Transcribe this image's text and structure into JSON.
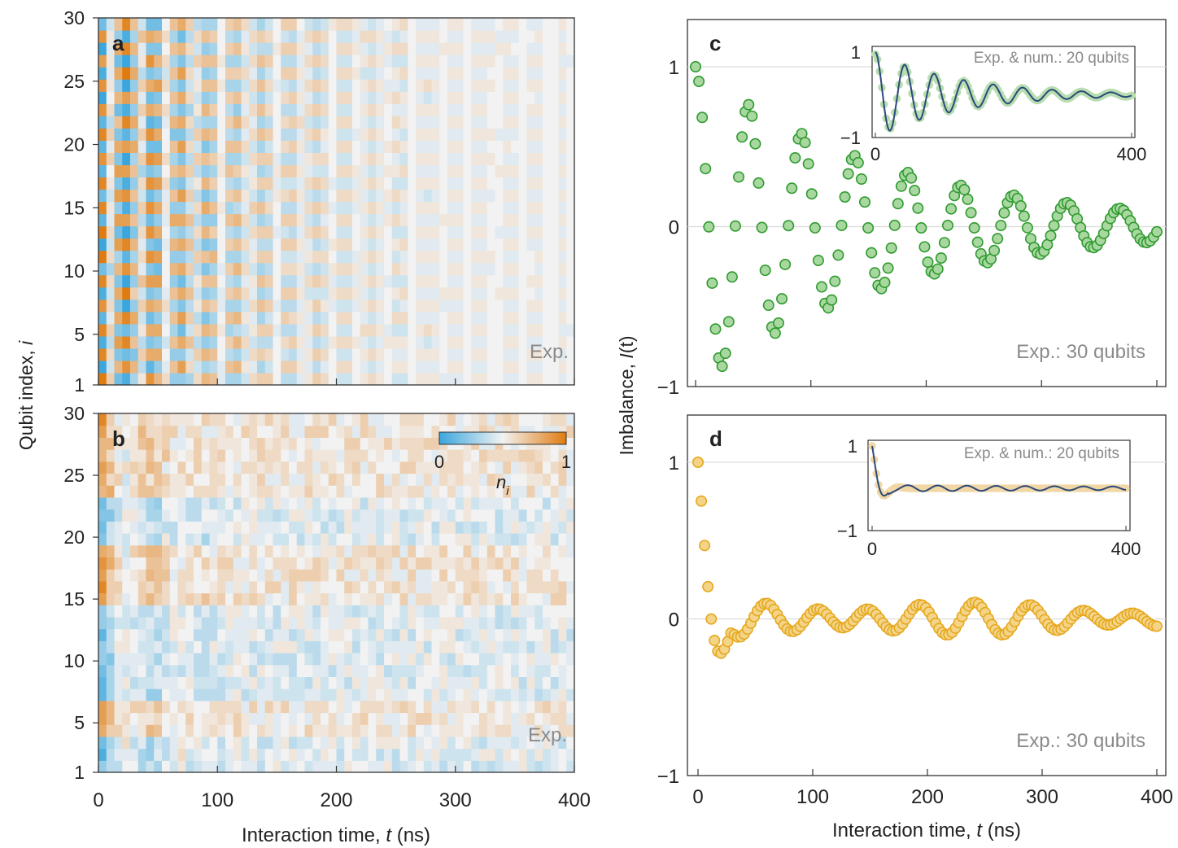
{
  "heatmaps": [
    {
      "panel": "a",
      "label": "Exp.",
      "type": "heatmap",
      "xlim": [
        0,
        400
      ],
      "xticks": [
        0,
        100,
        200,
        300,
        400
      ],
      "ylim": [
        1,
        30
      ],
      "yticks": [
        1,
        5,
        10,
        15,
        20,
        25,
        30
      ],
      "xlabel_plain": "Interaction time, ",
      "xlabel_var": "t",
      "xlabel_unit": " (ns)",
      "pattern": "staggered"
    },
    {
      "panel": "b",
      "label": "Exp.",
      "type": "heatmap",
      "xlim": [
        0,
        400
      ],
      "xticks": [
        0,
        100,
        200,
        300,
        400
      ],
      "ylim": [
        1,
        30
      ],
      "yticks": [
        1,
        5,
        10,
        15,
        20,
        25,
        30
      ],
      "xlabel_plain": "Interaction time, ",
      "xlabel_var": "t",
      "xlabel_unit": " (ns)",
      "pattern": "localized"
    }
  ],
  "heatmap_ylabel_plain": "Qubit index, ",
  "heatmap_ylabel_var": "i",
  "colorbar": {
    "min_label": "0",
    "max_label": "1",
    "var": "n",
    "sub": "i",
    "color_low": "#3aa6dd",
    "color_mid": "#f2f2f2",
    "color_high": "#e07b0f"
  },
  "imbalance_ylabel_plain": "Imbalance, ",
  "imbalance_ylabel_var": "I",
  "imbalance_ylabel_arg": "(t)",
  "chart_data": [
    {
      "panel": "c",
      "type": "scatter",
      "label": "Exp.: 30 qubits",
      "xlim": [
        0,
        400
      ],
      "ylim": [
        -1,
        1
      ],
      "xticks": [
        0,
        100,
        200,
        300,
        400
      ],
      "yticks": [
        -1,
        0,
        1
      ],
      "color": "#2f9a2f",
      "fill": "#a8d8a0",
      "model": {
        "amplitude": 1.0,
        "period_ns": 46,
        "decay_ns": 170,
        "offset": 0.0,
        "n_points": 140
      },
      "inset": {
        "label": "Exp. & num.: 20 qubits",
        "xlim": [
          0,
          400
        ],
        "ylim": [
          -1,
          1
        ],
        "xticks": [
          0,
          400
        ],
        "yticks": [
          -1,
          1
        ],
        "dot_color": "#b8ddb0",
        "line_color": "#2b4a7a",
        "model": {
          "amplitude": 1.0,
          "period_ns": 46,
          "decay_ns": 130,
          "offset": 0.0,
          "n_points": 120
        }
      }
    },
    {
      "panel": "d",
      "type": "scatter",
      "label": "Exp.: 30 qubits",
      "xlim": [
        0,
        400
      ],
      "ylim": [
        -1,
        1
      ],
      "xticks": [
        0,
        100,
        200,
        300,
        400
      ],
      "yticks": [
        -1,
        0,
        1
      ],
      "color": "#e6a81c",
      "fill": "#f3d489",
      "model": {
        "amplitude": 1.0,
        "period_ns": 46,
        "decay_ns": 14,
        "offset": 0.0,
        "n_points": 140
      },
      "inset": {
        "label": "Exp. & num.: 20 qubits",
        "xlim": [
          0,
          400
        ],
        "ylim": [
          -1,
          1
        ],
        "xticks": [
          0,
          400
        ],
        "yticks": [
          -1,
          1
        ],
        "dot_color": "#f1d7a5",
        "line_color": "#2b4a7a",
        "model": {
          "amplitude": 1.0,
          "period_ns": 46,
          "decay_ns": 12,
          "offset": 0.0,
          "n_points": 120
        }
      }
    }
  ]
}
